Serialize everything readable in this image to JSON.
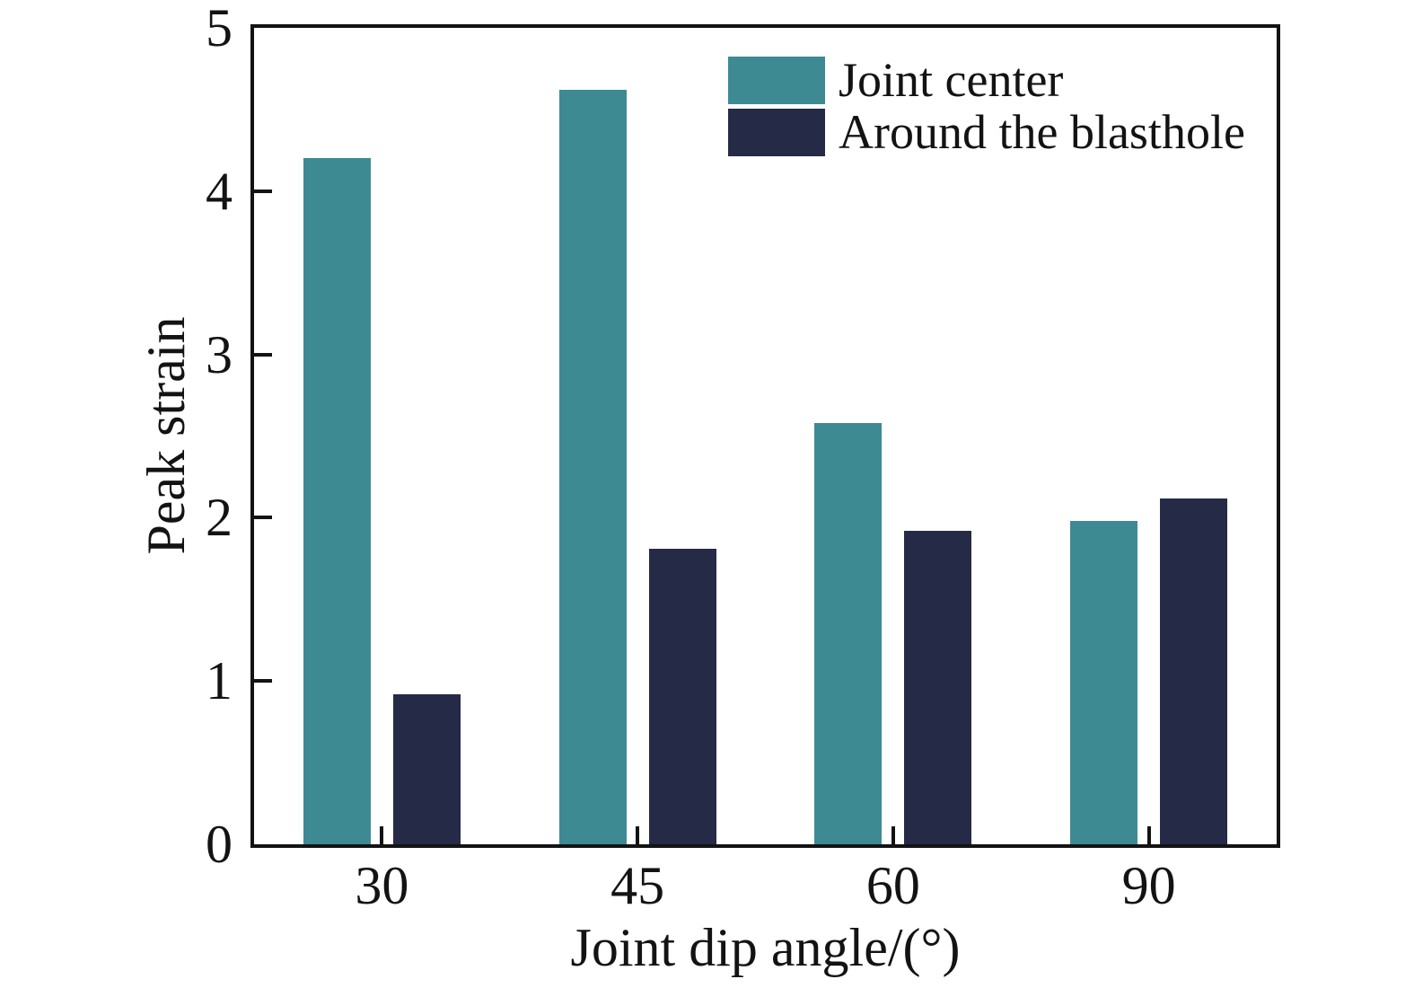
{
  "chart_data": {
    "type": "bar",
    "categories": [
      "30",
      "45",
      "60",
      "90"
    ],
    "series": [
      {
        "name": "Joint center",
        "color": "#3E8A93",
        "values": [
          4.2,
          4.62,
          2.58,
          1.98
        ]
      },
      {
        "name": "Around the blasthole",
        "color": "#252A46",
        "values": [
          0.92,
          1.81,
          1.92,
          2.12
        ]
      }
    ],
    "xlabel": "Joint dip angle/(°)",
    "ylabel": "Peak strain",
    "ylim": [
      0,
      5
    ],
    "yticks": [
      0,
      1,
      2,
      3,
      4,
      5
    ],
    "grid": false,
    "legend_position": "inside upper right",
    "axis_color": "#131313",
    "background": "#ffffff"
  }
}
